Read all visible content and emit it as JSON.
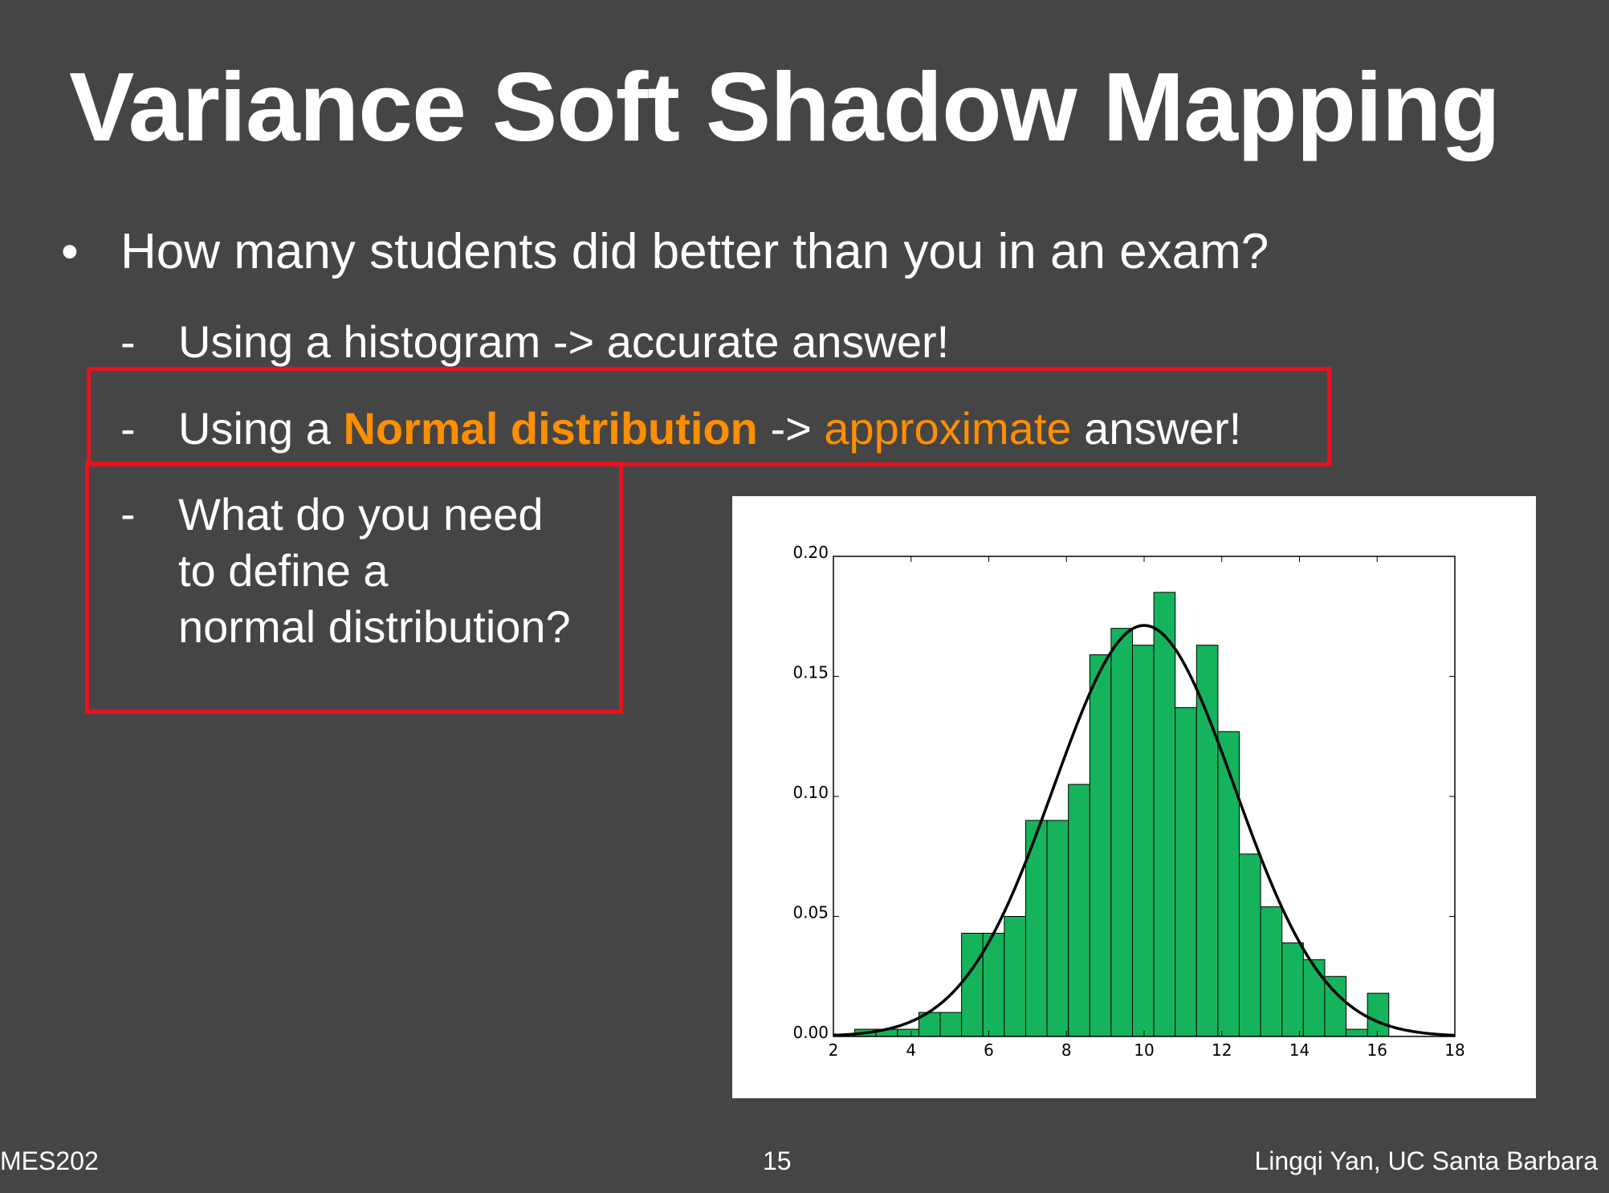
{
  "slide": {
    "title": "Variance Soft Shadow Mapping",
    "bullet": "How many students did better than you in an exam?",
    "sub1": {
      "dash": "-",
      "text": "Using a histogram -> accurate answer!"
    },
    "sub2": {
      "dash": "-",
      "prefix": "Using a ",
      "highlight": "Normal distribution",
      "middle": " -> ",
      "approx": "approximate",
      "suffix": " answer!"
    },
    "sub3": {
      "dash": "-",
      "lines": [
        "What do you need",
        "to define a",
        "normal distribution?"
      ]
    },
    "bullet_marker": "•"
  },
  "footer": {
    "left": "MES202",
    "page_number": "15",
    "right": "Lingqi Yan, UC Santa Barbara"
  },
  "colors": {
    "background": "#454545",
    "accent_orange": "#ff8f00",
    "highlight_red": "#e8121d",
    "bar_green": "#14b35c",
    "curve": "#000000"
  },
  "chart_data": {
    "type": "bar",
    "title": "",
    "xlabel": "",
    "ylabel": "",
    "xlim": [
      2,
      18
    ],
    "ylim": [
      0,
      0.2
    ],
    "x_ticks": [
      2,
      4,
      6,
      8,
      10,
      12,
      14,
      16,
      18
    ],
    "y_ticks": [
      "0.00",
      "0.05",
      "0.10",
      "0.15",
      "0.20"
    ],
    "bin_width": 0.55,
    "bins": [
      {
        "x0": 2.0,
        "value": 0.001
      },
      {
        "x0": 2.55,
        "value": 0.003
      },
      {
        "x0": 3.1,
        "value": 0.003
      },
      {
        "x0": 3.65,
        "value": 0.003
      },
      {
        "x0": 4.2,
        "value": 0.01
      },
      {
        "x0": 4.75,
        "value": 0.01
      },
      {
        "x0": 5.3,
        "value": 0.043
      },
      {
        "x0": 5.85,
        "value": 0.043
      },
      {
        "x0": 6.4,
        "value": 0.05
      },
      {
        "x0": 6.95,
        "value": 0.09
      },
      {
        "x0": 7.5,
        "value": 0.09
      },
      {
        "x0": 8.05,
        "value": 0.105
      },
      {
        "x0": 8.6,
        "value": 0.159
      },
      {
        "x0": 9.15,
        "value": 0.17
      },
      {
        "x0": 9.7,
        "value": 0.163
      },
      {
        "x0": 10.25,
        "value": 0.185
      },
      {
        "x0": 10.8,
        "value": 0.137
      },
      {
        "x0": 11.35,
        "value": 0.163
      },
      {
        "x0": 11.9,
        "value": 0.127
      },
      {
        "x0": 12.45,
        "value": 0.076
      },
      {
        "x0": 13.0,
        "value": 0.054
      },
      {
        "x0": 13.55,
        "value": 0.039
      },
      {
        "x0": 14.1,
        "value": 0.032
      },
      {
        "x0": 14.65,
        "value": 0.025
      },
      {
        "x0": 15.2,
        "value": 0.003
      },
      {
        "x0": 15.75,
        "value": 0.018
      }
    ],
    "curve": {
      "type": "normal-pdf",
      "mean": 10,
      "std": 2.33
    },
    "grid": false,
    "legend": "none"
  }
}
